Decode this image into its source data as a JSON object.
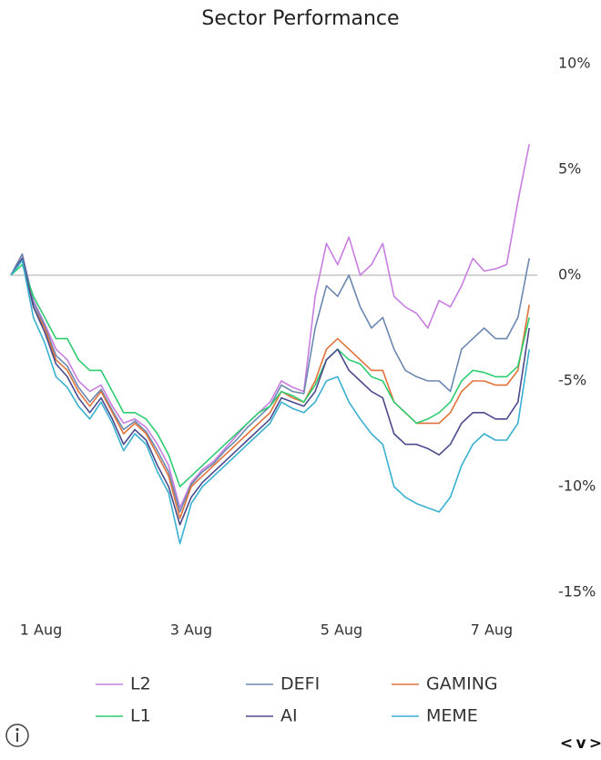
{
  "chart_data": {
    "type": "line",
    "title": "Sector Performance",
    "x": [
      0.6,
      0.75,
      0.9,
      1.05,
      1.2,
      1.35,
      1.5,
      1.65,
      1.8,
      1.95,
      2.1,
      2.25,
      2.4,
      2.55,
      2.7,
      2.85,
      3.0,
      3.15,
      3.3,
      3.45,
      3.6,
      3.75,
      3.9,
      4.05,
      4.2,
      4.35,
      4.5,
      4.65,
      4.8,
      4.95,
      5.1,
      5.25,
      5.4,
      5.55,
      5.7,
      5.85,
      6.0,
      6.15,
      6.3,
      6.45,
      6.6,
      6.75,
      6.9,
      7.05,
      7.2,
      7.35,
      7.5
    ],
    "xlim": [
      0.6,
      7.51
    ],
    "xticks": [
      {
        "value": 1,
        "label": "1 Aug"
      },
      {
        "value": 3,
        "label": "3 Aug"
      },
      {
        "value": 5,
        "label": "5 Aug"
      },
      {
        "value": 7,
        "label": "7 Aug"
      }
    ],
    "ylim": [
      -15,
      10
    ],
    "yticks": [
      {
        "value": 10,
        "label": "10%"
      },
      {
        "value": 5,
        "label": "5%"
      },
      {
        "value": 0,
        "label": "0%"
      },
      {
        "value": -5,
        "label": "-5%"
      },
      {
        "value": -10,
        "label": "-10%"
      },
      {
        "value": -15,
        "label": "-15%"
      }
    ],
    "zero_line": true,
    "series": [
      {
        "name": "L2",
        "color": "#c77ee0",
        "values": [
          0,
          1,
          -1.2,
          -2.3,
          -3.5,
          -4,
          -5,
          -5.5,
          -5.2,
          -6.2,
          -7,
          -6.8,
          -7.2,
          -8,
          -9,
          -11,
          -9.8,
          -9.2,
          -8.8,
          -8.2,
          -7.6,
          -7,
          -6.5,
          -6,
          -5,
          -5.3,
          -5.5,
          -1,
          1.5,
          0.5,
          1.8,
          0,
          0.5,
          1.5,
          -1,
          -1.5,
          -1.8,
          -2.5,
          -1.2,
          -1.5,
          -0.5,
          0.8,
          0.2,
          0.3,
          0.5,
          3.5,
          6.2
        ]
      },
      {
        "name": "DEFI",
        "color": "#6b88b0",
        "values": [
          0,
          1,
          -1.3,
          -2.4,
          -3.8,
          -4.3,
          -5.3,
          -6,
          -5.4,
          -6.4,
          -7.3,
          -6.9,
          -7.4,
          -8.3,
          -9.3,
          -11.2,
          -9.9,
          -9.3,
          -8.9,
          -8.3,
          -7.8,
          -7.2,
          -6.7,
          -6.2,
          -5.2,
          -5.5,
          -5.6,
          -2.5,
          -0.5,
          -1,
          0,
          -1.5,
          -2.5,
          -2,
          -3.5,
          -4.5,
          -4.8,
          -5,
          -5,
          -5.5,
          -3.5,
          -3,
          -2.5,
          -3,
          -3,
          -2,
          0.8
        ]
      },
      {
        "name": "GAMING",
        "color": "#e0733a",
        "values": [
          0,
          0.8,
          -1.5,
          -2.5,
          -4,
          -4.5,
          -5.5,
          -6.2,
          -5.5,
          -6.5,
          -7.5,
          -7,
          -7.5,
          -8.5,
          -9.5,
          -11.5,
          -10,
          -9.5,
          -9,
          -8.5,
          -8,
          -7.5,
          -7,
          -6.5,
          -5.5,
          -5.8,
          -6,
          -5,
          -3.5,
          -3,
          -3.5,
          -4,
          -4.5,
          -4.5,
          -6,
          -6.5,
          -7,
          -7,
          -7,
          -6.5,
          -5.5,
          -5,
          -5,
          -5.2,
          -5.2,
          -4.5,
          -1.4
        ]
      },
      {
        "name": "L1",
        "color": "#2ecc71",
        "values": [
          0,
          0.5,
          -1,
          -2,
          -3,
          -3,
          -4,
          -4.5,
          -4.5,
          -5.5,
          -6.5,
          -6.5,
          -6.8,
          -7.5,
          -8.5,
          -10,
          -9.5,
          -9,
          -8.5,
          -8,
          -7.5,
          -7,
          -6.5,
          -6.2,
          -5.5,
          -5.7,
          -6,
          -5.2,
          -4,
          -3.5,
          -4,
          -4.2,
          -4.8,
          -5,
          -6,
          -6.5,
          -7,
          -6.8,
          -6.5,
          -6,
          -5,
          -4.5,
          -4.6,
          -4.8,
          -4.8,
          -4.3,
          -2
        ]
      },
      {
        "name": "AI",
        "color": "#4a4a8c",
        "values": [
          0,
          0.8,
          -1.5,
          -2.7,
          -4.2,
          -4.8,
          -5.8,
          -6.5,
          -5.8,
          -6.8,
          -8,
          -7.3,
          -7.8,
          -9,
          -10,
          -11.8,
          -10.5,
          -9.8,
          -9.3,
          -8.8,
          -8.3,
          -7.8,
          -7.3,
          -6.8,
          -5.8,
          -6,
          -6.2,
          -5.5,
          -4,
          -3.5,
          -4.5,
          -5,
          -5.5,
          -5.8,
          -7.5,
          -8,
          -8,
          -8.2,
          -8.5,
          -8,
          -7,
          -6.5,
          -6.5,
          -6.8,
          -6.8,
          -6,
          -2.5
        ]
      },
      {
        "name": "MEME",
        "color": "#3ab0d0",
        "values": [
          0,
          0.7,
          -2,
          -3.2,
          -4.8,
          -5.3,
          -6.2,
          -6.8,
          -6,
          -7,
          -8.3,
          -7.5,
          -8,
          -9.3,
          -10.3,
          -12.7,
          -10.8,
          -10,
          -9.5,
          -9,
          -8.5,
          -8,
          -7.5,
          -7,
          -6,
          -6.3,
          -6.5,
          -6,
          -5,
          -4.8,
          -6,
          -6.8,
          -7.5,
          -8,
          -10,
          -10.5,
          -10.8,
          -11,
          -11.2,
          -10.5,
          -9,
          -8,
          -7.5,
          -7.8,
          -7.8,
          -7,
          -3.5
        ]
      }
    ]
  },
  "controls": {
    "prev": "<",
    "toggle": "v",
    "next": ">"
  }
}
